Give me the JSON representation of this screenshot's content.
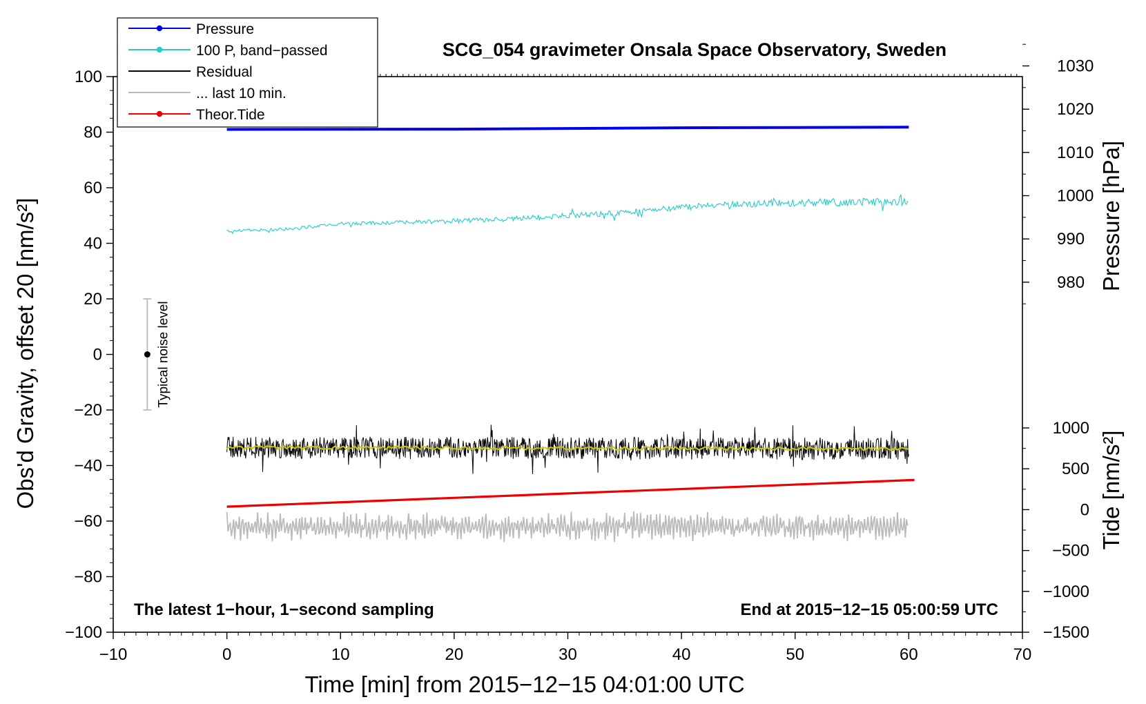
{
  "chart_data": {
    "type": "line",
    "title": "SCG_054 gravimeter Onsala Space Observatory, Sweden",
    "xlabel": "Time [min] from 2015−12−15 04:01:00 UTC",
    "ylabel": "Obs'd Gravity, offset 20 [nm/s²]",
    "y2label_pressure": "Pressure [hPa]",
    "y2label_tide": "Tide [nm/s²]",
    "xlim": [
      -10,
      70
    ],
    "ylim": [
      -100,
      100
    ],
    "x_ticks": [
      "−10",
      "0",
      "10",
      "20",
      "30",
      "40",
      "50",
      "60",
      "70"
    ],
    "x_tick_values": [
      -10,
      0,
      10,
      20,
      30,
      40,
      50,
      60,
      70
    ],
    "y_ticks": [
      "100",
      "80",
      "60",
      "40",
      "20",
      "0",
      "−20",
      "−40",
      "−60",
      "−80",
      "−100"
    ],
    "y_tick_values": [
      100,
      80,
      60,
      40,
      20,
      0,
      -20,
      -40,
      -60,
      -80,
      -100
    ],
    "pressure_axis": {
      "ticks": [
        "1030",
        "1020",
        "1010",
        "1000",
        "990",
        "980"
      ],
      "tick_values": [
        1030,
        1020,
        1010,
        1000,
        990,
        980
      ],
      "hPa_at_gravity_0": 963.3,
      "hPa_per_gravity_unit": 0.6423
    },
    "tide_axis": {
      "ticks": [
        "1000",
        "500",
        "0",
        "−500",
        "−1000",
        "−1500"
      ],
      "tick_values": [
        1000,
        500,
        0,
        -500,
        -1000,
        -1500
      ],
      "nms2_at_gravity_0": 1900,
      "nms2_per_gravity_unit": 34
    },
    "legend": [
      {
        "label": "Pressure",
        "color": "#0000ee",
        "marker": true
      },
      {
        "label": "100 P, band−passed",
        "color": "#22cccc",
        "marker": true
      },
      {
        "label": "Residual",
        "color": "#000000",
        "marker": false
      },
      {
        "label": "... last 10 min.",
        "color": "#bbbbbb",
        "marker": false
      },
      {
        "label": "Theor.Tide",
        "color": "#ee0000",
        "marker": true
      }
    ],
    "series": [
      {
        "name": "Pressure",
        "color": "#0000ee",
        "x": [
          0,
          20,
          40,
          60
        ],
        "y": [
          81.0,
          81.1,
          81.6,
          81.8
        ]
      },
      {
        "name": "100 P, band−passed",
        "color": "#22cccc",
        "x": [
          0,
          5,
          10,
          15,
          20,
          25,
          30,
          35,
          40,
          45,
          50,
          55,
          60
        ],
        "y": [
          44.5,
          45,
          47,
          47.5,
          48,
          48.8,
          50,
          51,
          53,
          54,
          54.5,
          54.8,
          55
        ],
        "noise": 1.5
      },
      {
        "name": "Residual",
        "color": "#000000",
        "x": [
          0,
          60
        ],
        "y": [
          -33.5,
          -34
        ],
        "noise": 4
      },
      {
        "name": "Residual smoothed",
        "color": "#cccc00",
        "x": [
          0,
          60
        ],
        "y": [
          -33.5,
          -34
        ]
      },
      {
        "name": "... last 10 min.",
        "color": "#bbbbbb",
        "x": [
          0,
          60
        ],
        "y": [
          -62,
          -62
        ],
        "noise": 4
      },
      {
        "name": "Theor.Tide",
        "color": "#ee0000",
        "x": [
          0,
          60.5
        ],
        "y": [
          -54.8,
          -45.2
        ]
      }
    ],
    "noise_bar": {
      "label": "Typical noise level",
      "x": -7,
      "y": 0,
      "ylow": -20,
      "yhigh": 20
    },
    "note_left": "The latest 1−hour, 1−second sampling",
    "note_right": "End at 2015−12−15 05:00:59 UTC"
  }
}
